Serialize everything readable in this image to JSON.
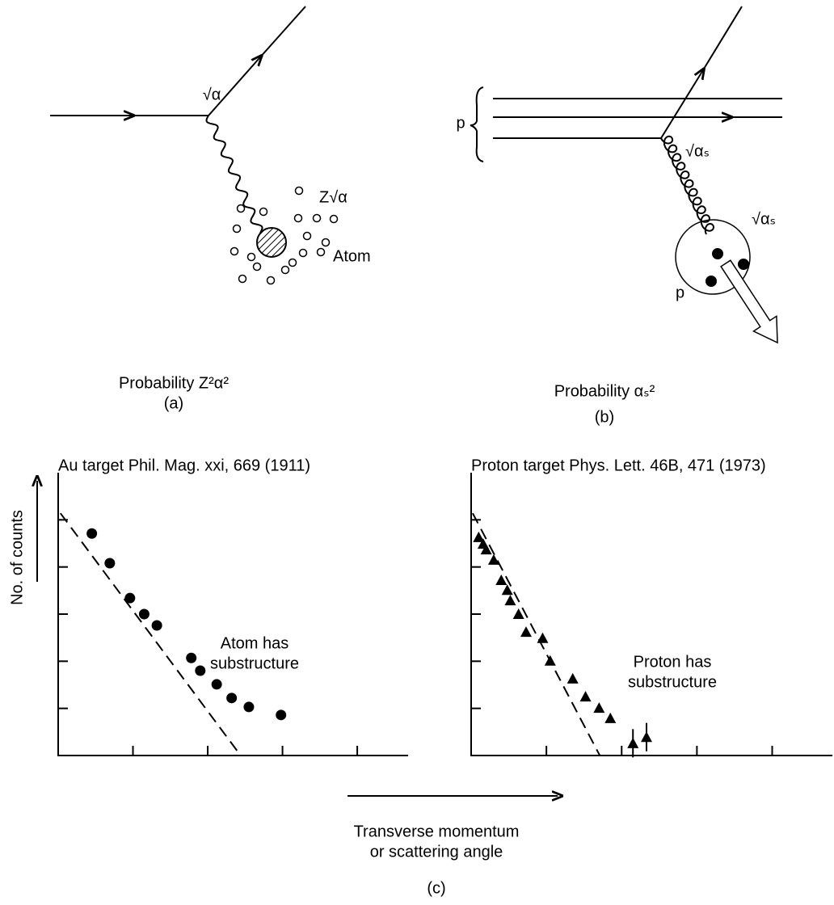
{
  "diagram_a": {
    "vertex_label": "√α",
    "charge_label": "Z√α",
    "target_label": "Atom",
    "probability": "Probability Z²α²",
    "caption": "(a)"
  },
  "diagram_b": {
    "beam_label": "p",
    "vertex_label_top": "√αₛ",
    "vertex_label_bottom": "√αₛ",
    "target_label": "p",
    "probability": "Probability αₛ²",
    "caption": "(b)"
  },
  "y_label": "No. of counts",
  "x_label": [
    "Transverse momentum",
    "or scattering angle"
  ],
  "caption": "(c)",
  "chart_data": [
    {
      "type": "scatter",
      "title": "Au target Phil. Mag. xxi, 669 (1911)",
      "marker": "circle",
      "color": "#000000",
      "annotation": [
        "Atom has",
        "substructure"
      ],
      "x": [
        0.45,
        0.69,
        0.96,
        1.15,
        1.32,
        1.78,
        1.9,
        2.12,
        2.32,
        2.55,
        2.98
      ],
      "values": [
        4.71,
        4.08,
        3.34,
        3.0,
        2.76,
        2.07,
        1.8,
        1.51,
        1.22,
        1.03,
        0.86
      ],
      "reference_line": {
        "x": [
          0.03,
          2.44
        ],
        "y": [
          5.14,
          0
        ]
      },
      "xlim": [
        0,
        4.68
      ],
      "ylim": [
        0,
        6
      ],
      "xticks": [
        1,
        2,
        3,
        4
      ],
      "yticks": [
        1,
        2,
        3,
        4,
        5
      ]
    },
    {
      "type": "scatter",
      "title": "Proton target Phys. Lett. 46B, 471 (1973)",
      "marker": "triangle",
      "color": "#000000",
      "annotation": [
        "Proton has",
        "substructure"
      ],
      "x": [
        0.1,
        0.16,
        0.2,
        0.3,
        0.4,
        0.48,
        0.52,
        0.63,
        0.73,
        0.95,
        1.05,
        1.35,
        1.52,
        1.7,
        1.85,
        2.15,
        2.33
      ],
      "values": [
        4.63,
        4.49,
        4.37,
        4.15,
        3.72,
        3.51,
        3.29,
        3.0,
        2.62,
        2.49,
        2.01,
        1.63,
        1.25,
        1.01,
        0.79,
        0.26,
        0.39
      ],
      "errors": [
        null,
        null,
        null,
        null,
        null,
        null,
        null,
        null,
        null,
        null,
        null,
        null,
        null,
        null,
        null,
        0.3,
        0.3
      ],
      "reference_line": {
        "x": [
          0.02,
          1.71
        ],
        "y": [
          5.14,
          0
        ]
      },
      "xlim": [
        0,
        4.8
      ],
      "ylim": [
        0,
        6
      ],
      "xticks": [
        1,
        2,
        3,
        4
      ],
      "yticks": [
        1,
        2,
        3,
        4,
        5
      ]
    }
  ]
}
